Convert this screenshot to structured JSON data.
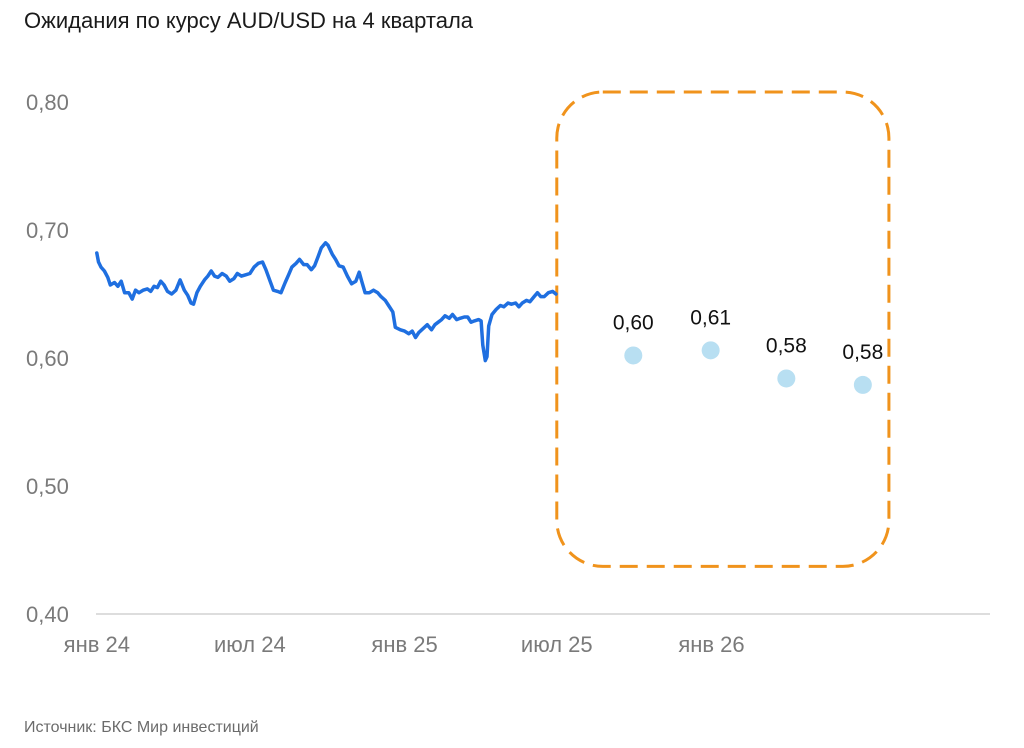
{
  "title": "Ожидания по курсу AUD/USD на 4 квартала",
  "source": "Источник: БКС Мир инвестиций",
  "chart_data": {
    "type": "line",
    "title": "Ожидания по курсу AUD/USD на 4 квартала",
    "ylim": [
      0.4,
      0.8
    ],
    "yticks": [
      {
        "value": 0.8,
        "label": "0,80"
      },
      {
        "value": 0.7,
        "label": "0,70"
      },
      {
        "value": 0.6,
        "label": "0,60"
      },
      {
        "value": 0.5,
        "label": "0,50"
      },
      {
        "value": 0.4,
        "label": "0,40"
      }
    ],
    "xlim": [
      "2023-12-31",
      "2026-12-22"
    ],
    "xticks": [
      {
        "value": "2024-01-01",
        "label": "янв 24"
      },
      {
        "value": "2024-07-01",
        "label": "июл 24"
      },
      {
        "value": "2025-01-01",
        "label": "янв 25"
      },
      {
        "value": "2025-07-01",
        "label": "июл 25"
      },
      {
        "value": "2026-01-01",
        "label": "янв 26"
      }
    ],
    "grid": false,
    "series": [
      {
        "kind": "line",
        "color": "#1f6fe0",
        "points": [
          [
            "2024-01-01",
            0.682
          ],
          [
            "2024-01-03",
            0.675
          ],
          [
            "2024-01-06",
            0.671
          ],
          [
            "2024-01-10",
            0.668
          ],
          [
            "2024-01-14",
            0.663
          ],
          [
            "2024-01-17",
            0.657
          ],
          [
            "2024-01-22",
            0.659
          ],
          [
            "2024-01-26",
            0.656
          ],
          [
            "2024-01-30",
            0.66
          ],
          [
            "2024-02-03",
            0.651
          ],
          [
            "2024-02-08",
            0.651
          ],
          [
            "2024-02-12",
            0.646
          ],
          [
            "2024-02-16",
            0.653
          ],
          [
            "2024-02-20",
            0.651
          ],
          [
            "2024-02-25",
            0.653
          ],
          [
            "2024-03-01",
            0.654
          ],
          [
            "2024-03-05",
            0.652
          ],
          [
            "2024-03-09",
            0.656
          ],
          [
            "2024-03-13",
            0.655
          ],
          [
            "2024-03-17",
            0.66
          ],
          [
            "2024-03-21",
            0.657
          ],
          [
            "2024-03-25",
            0.652
          ],
          [
            "2024-03-30",
            0.65
          ],
          [
            "2024-04-04",
            0.653
          ],
          [
            "2024-04-09",
            0.661
          ],
          [
            "2024-04-14",
            0.653
          ],
          [
            "2024-04-18",
            0.649
          ],
          [
            "2024-04-22",
            0.643
          ],
          [
            "2024-04-25",
            0.642
          ],
          [
            "2024-04-29",
            0.651
          ],
          [
            "2024-05-03",
            0.656
          ],
          [
            "2024-05-08",
            0.661
          ],
          [
            "2024-05-12",
            0.664
          ],
          [
            "2024-05-16",
            0.668
          ],
          [
            "2024-05-20",
            0.664
          ],
          [
            "2024-05-24",
            0.663
          ],
          [
            "2024-05-29",
            0.666
          ],
          [
            "2024-06-03",
            0.664
          ],
          [
            "2024-06-07",
            0.66
          ],
          [
            "2024-06-12",
            0.662
          ],
          [
            "2024-06-16",
            0.666
          ],
          [
            "2024-06-21",
            0.664
          ],
          [
            "2024-06-26",
            0.665
          ],
          [
            "2024-07-01",
            0.666
          ],
          [
            "2024-07-06",
            0.671
          ],
          [
            "2024-07-11",
            0.674
          ],
          [
            "2024-07-16",
            0.675
          ],
          [
            "2024-07-20",
            0.669
          ],
          [
            "2024-07-25",
            0.66
          ],
          [
            "2024-07-29",
            0.653
          ],
          [
            "2024-08-03",
            0.652
          ],
          [
            "2024-08-07",
            0.651
          ],
          [
            "2024-08-12",
            0.659
          ],
          [
            "2024-08-16",
            0.665
          ],
          [
            "2024-08-20",
            0.671
          ],
          [
            "2024-08-25",
            0.674
          ],
          [
            "2024-08-29",
            0.677
          ],
          [
            "2024-09-03",
            0.673
          ],
          [
            "2024-09-07",
            0.673
          ],
          [
            "2024-09-12",
            0.669
          ],
          [
            "2024-09-16",
            0.672
          ],
          [
            "2024-09-20",
            0.679
          ],
          [
            "2024-09-24",
            0.686
          ],
          [
            "2024-09-29",
            0.69
          ],
          [
            "2024-10-02",
            0.688
          ],
          [
            "2024-10-07",
            0.681
          ],
          [
            "2024-10-11",
            0.677
          ],
          [
            "2024-10-15",
            0.672
          ],
          [
            "2024-10-20",
            0.671
          ],
          [
            "2024-10-25",
            0.664
          ],
          [
            "2024-10-30",
            0.658
          ],
          [
            "2024-11-04",
            0.66
          ],
          [
            "2024-11-08",
            0.667
          ],
          [
            "2024-11-11",
            0.66
          ],
          [
            "2024-11-15",
            0.651
          ],
          [
            "2024-11-20",
            0.651
          ],
          [
            "2024-11-25",
            0.653
          ],
          [
            "2024-11-30",
            0.651
          ],
          [
            "2024-12-04",
            0.648
          ],
          [
            "2024-12-09",
            0.645
          ],
          [
            "2024-12-13",
            0.641
          ],
          [
            "2024-12-18",
            0.636
          ],
          [
            "2024-12-21",
            0.624
          ],
          [
            "2024-12-27",
            0.622
          ],
          [
            "2025-01-01",
            0.621
          ],
          [
            "2025-01-06",
            0.619
          ],
          [
            "2025-01-10",
            0.621
          ],
          [
            "2025-01-14",
            0.616
          ],
          [
            "2025-01-18",
            0.62
          ],
          [
            "2025-01-23",
            0.623
          ],
          [
            "2025-01-28",
            0.626
          ],
          [
            "2025-02-02",
            0.622
          ],
          [
            "2025-02-06",
            0.626
          ],
          [
            "2025-02-10",
            0.628
          ],
          [
            "2025-02-14",
            0.63
          ],
          [
            "2025-02-18",
            0.633
          ],
          [
            "2025-02-23",
            0.631
          ],
          [
            "2025-02-27",
            0.634
          ],
          [
            "2025-03-04",
            0.63
          ],
          [
            "2025-03-08",
            0.631
          ],
          [
            "2025-03-13",
            0.632
          ],
          [
            "2025-03-17",
            0.632
          ],
          [
            "2025-03-21",
            0.628
          ],
          [
            "2025-03-25",
            0.629
          ],
          [
            "2025-03-30",
            0.63
          ],
          [
            "2025-04-02",
            0.629
          ],
          [
            "2025-04-04",
            0.61
          ],
          [
            "2025-04-07",
            0.598
          ],
          [
            "2025-04-09",
            0.601
          ],
          [
            "2025-04-11",
            0.625
          ],
          [
            "2025-04-15",
            0.634
          ],
          [
            "2025-04-20",
            0.638
          ],
          [
            "2025-04-25",
            0.641
          ],
          [
            "2025-04-29",
            0.64
          ],
          [
            "2025-05-04",
            0.643
          ],
          [
            "2025-05-08",
            0.642
          ],
          [
            "2025-05-13",
            0.643
          ],
          [
            "2025-05-17",
            0.64
          ],
          [
            "2025-05-21",
            0.643
          ],
          [
            "2025-05-26",
            0.645
          ],
          [
            "2025-05-30",
            0.644
          ],
          [
            "2025-06-04",
            0.648
          ],
          [
            "2025-06-08",
            0.651
          ],
          [
            "2025-06-12",
            0.648
          ],
          [
            "2025-06-16",
            0.648
          ],
          [
            "2025-06-21",
            0.651
          ],
          [
            "2025-06-26",
            0.652
          ],
          [
            "2025-06-30",
            0.65
          ]
        ]
      },
      {
        "kind": "forecast-points",
        "color": "#b8dff2",
        "points": [
          {
            "x": "2025-09-30",
            "y": 0.602,
            "label": "0,60"
          },
          {
            "x": "2025-12-31",
            "y": 0.606,
            "label": "0,61"
          },
          {
            "x": "2026-03-31",
            "y": 0.584,
            "label": "0,58"
          },
          {
            "x": "2026-06-30",
            "y": 0.579,
            "label": "0,58"
          }
        ]
      }
    ],
    "highlight": {
      "kind": "dashed-rounded-box",
      "color": "#f0931c",
      "from": "2025-07-01",
      "to": "2026-07-31",
      "ymin": 0.445,
      "ymax": 0.8
    }
  }
}
